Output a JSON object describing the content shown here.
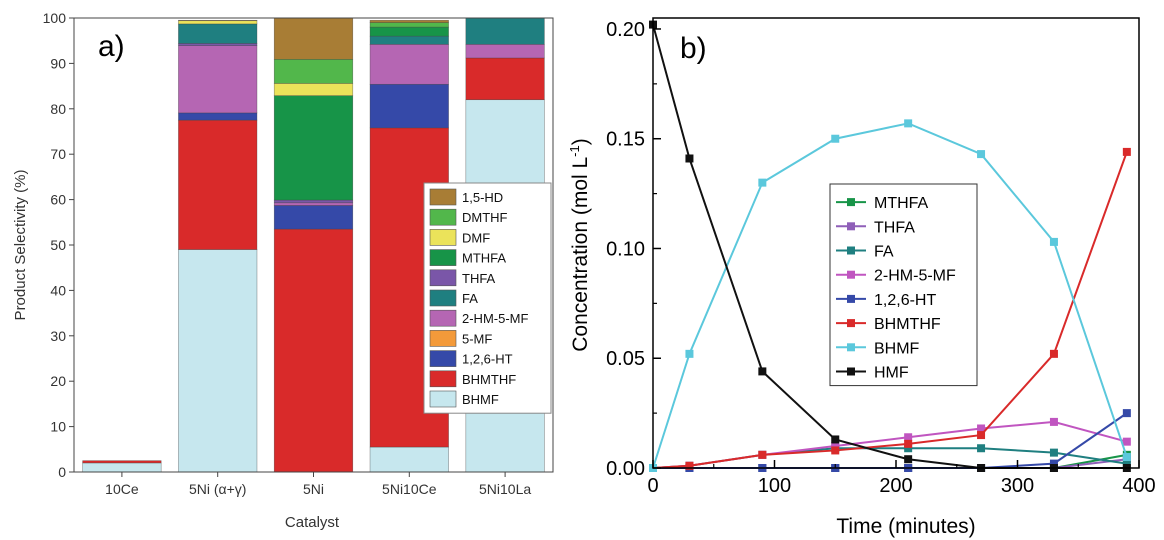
{
  "chart_data": [
    {
      "panel_label": "a)",
      "type": "bar",
      "stacked": true,
      "xlabel": "Catalyst",
      "ylabel": "Product Selectivity (%)",
      "ylim": [
        0,
        100
      ],
      "yticks": [
        "0",
        "10",
        "20",
        "30",
        "40",
        "50",
        "60",
        "70",
        "80",
        "90",
        "100"
      ],
      "categories": [
        "10Ce",
        "5Ni (α+γ)",
        "5Ni",
        "5Ni10Ce",
        "5Ni10La"
      ],
      "legend_position": "center-right",
      "legend_order": [
        "1,5-HD",
        "DMTHF",
        "DMF",
        "MTHFA",
        "THFA",
        "FA",
        "2-HM-5-MF",
        "5-MF",
        "1,2,6-HT",
        "BHMTHF",
        "BHMF"
      ],
      "series": [
        {
          "name": "BHMF",
          "color": "#c6e7ee",
          "values": [
            2.0,
            49.0,
            0.0,
            5.5,
            82.0
          ]
        },
        {
          "name": "BHMTHF",
          "color": "#d92a2a",
          "values": [
            0.5,
            28.5,
            53.5,
            70.3,
            9.2
          ]
        },
        {
          "name": "1,2,6-HT",
          "color": "#3549a8",
          "values": [
            0,
            1.6,
            5.2,
            9.6,
            0
          ]
        },
        {
          "name": "5-MF",
          "color": "#f39a3a",
          "values": [
            0,
            0,
            0,
            0,
            0
          ]
        },
        {
          "name": "2-HM-5-MF",
          "color": "#b566b3",
          "values": [
            0,
            14.8,
            0.6,
            8.8,
            3.0
          ]
        },
        {
          "name": "THFA",
          "color": "#7a56a8",
          "values": [
            0,
            0.5,
            0.6,
            0,
            0
          ]
        },
        {
          "name": "FA",
          "color": "#1f7f80",
          "values": [
            0,
            4.3,
            0,
            1.8,
            5.8
          ]
        },
        {
          "name": "MTHFA",
          "color": "#179448",
          "values": [
            0,
            0,
            23.0,
            2.0,
            0
          ]
        },
        {
          "name": "DMF",
          "color": "#ebe35a",
          "values": [
            0,
            0.7,
            2.7,
            0,
            0
          ]
        },
        {
          "name": "DMTHF",
          "color": "#52b74b",
          "values": [
            0,
            0,
            5.3,
            1.0,
            0
          ]
        },
        {
          "name": "1,5-HD",
          "color": "#a87d35",
          "values": [
            0,
            0.1,
            9.1,
            0.5,
            0
          ]
        }
      ]
    },
    {
      "panel_label": "b)",
      "type": "line",
      "xlabel": "Time (minutes)",
      "ylabel": "Concentration (mol L",
      "ylabel_unit_sup": "-1",
      "ylabel_close": ")",
      "xlim": [
        0,
        400
      ],
      "ylim": [
        0,
        0.205
      ],
      "xticks": [
        0,
        100,
        200,
        300,
        400
      ],
      "xtick_labels": [
        "0",
        "100",
        "200",
        "300",
        "400"
      ],
      "yticks": [
        0,
        0.05,
        0.1,
        0.15,
        0.2
      ],
      "ytick_labels": [
        "0.00",
        "0.05",
        "0.10",
        "0.15",
        "0.20"
      ],
      "x": [
        0,
        30,
        90,
        150,
        210,
        270,
        330,
        390
      ],
      "legend_position": "center",
      "series": [
        {
          "name": "MTHFA",
          "color": "#179448",
          "values": [
            0,
            0,
            0,
            0,
            0,
            0,
            0,
            0.006
          ]
        },
        {
          "name": "THFA",
          "color": "#8f5fb8",
          "values": [
            0,
            0,
            0,
            0,
            0,
            0,
            0,
            0.004
          ]
        },
        {
          "name": "FA",
          "color": "#1f7f80",
          "values": [
            0,
            0.001,
            0.006,
            0.009,
            0.009,
            0.009,
            0.007,
            0.002
          ]
        },
        {
          "name": "2-HM-5-MF",
          "color": "#c055c0",
          "values": [
            0,
            0.001,
            0.006,
            0.01,
            0.014,
            0.018,
            0.021,
            0.012
          ]
        },
        {
          "name": "1,2,6-HT",
          "color": "#3549a8",
          "values": [
            0,
            0,
            0,
            0,
            0,
            0,
            0.002,
            0.025
          ]
        },
        {
          "name": "BHMTHF",
          "color": "#d92a2a",
          "values": [
            0,
            0.001,
            0.006,
            0.008,
            0.011,
            0.015,
            0.052,
            0.144
          ]
        },
        {
          "name": "BHMF",
          "color": "#5bc8dc",
          "values": [
            0,
            0.052,
            0.13,
            0.15,
            0.157,
            0.143,
            0.103,
            0.005
          ]
        },
        {
          "name": "HMF",
          "color": "#111111",
          "values": [
            0.202,
            0.141,
            0.044,
            0.013,
            0.004,
            0,
            0,
            0
          ]
        }
      ]
    }
  ]
}
